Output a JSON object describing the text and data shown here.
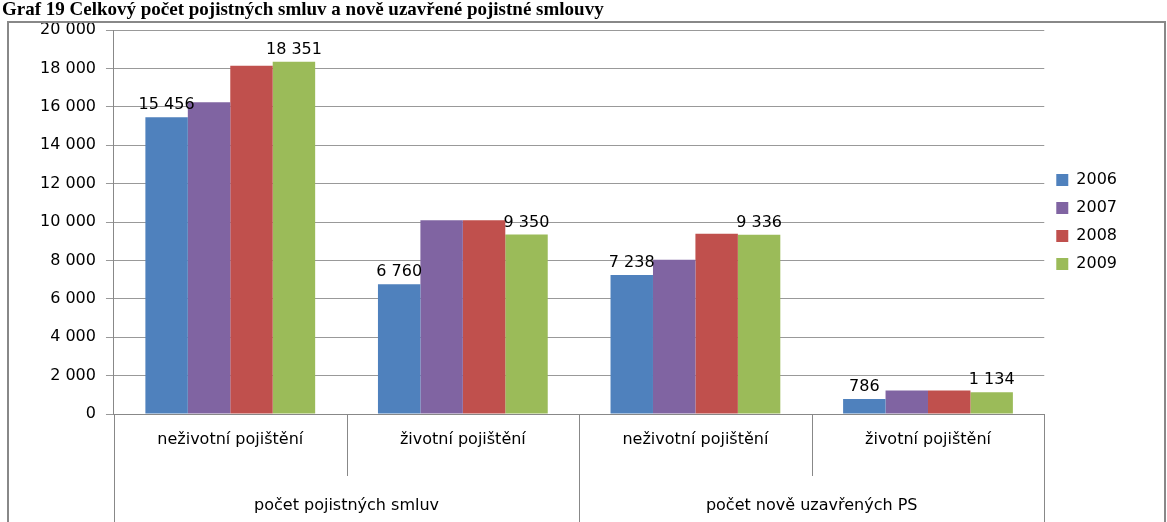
{
  "chart_data": {
    "type": "bar",
    "title": "Graf 19 Celkový počet pojistných smluv a nově uzavřené pojistné smlouvy",
    "categories": [
      "neživotní pojištění",
      "životní pojištění",
      "neživotní pojištění",
      "životní pojištění"
    ],
    "annotations": [
      "počet pojistných smluv",
      "počet nově uzavřených PS"
    ],
    "series": [
      {
        "name": "2006",
        "color": "#4f81bd",
        "values": [
          15456,
          6760,
          7238,
          786
        ],
        "value_labels": [
          "15 456",
          "6 760",
          "7 238",
          "786"
        ]
      },
      {
        "name": "2007",
        "color": "#8064a2",
        "values": [
          16240,
          10090,
          8040,
          1220
        ],
        "value_labels": [
          null,
          null,
          null,
          null
        ]
      },
      {
        "name": "2008",
        "color": "#c0504d",
        "values": [
          18140,
          10090,
          9390,
          1220
        ],
        "value_labels": [
          null,
          null,
          null,
          null
        ]
      },
      {
        "name": "2009",
        "color": "#9bbb59",
        "values": [
          18351,
          9350,
          9336,
          1134
        ],
        "value_labels": [
          "18 351",
          "9 350",
          "9 336",
          "1 134"
        ]
      }
    ],
    "ylim": [
      0,
      20000
    ],
    "yticks": [
      {
        "value": 0,
        "label": "0"
      },
      {
        "value": 2000,
        "label": "2 000"
      },
      {
        "value": 4000,
        "label": "4 000"
      },
      {
        "value": 6000,
        "label": "6 000"
      },
      {
        "value": 8000,
        "label": "8 000"
      },
      {
        "value": 10000,
        "label": "10 000"
      },
      {
        "value": 12000,
        "label": "12 000"
      },
      {
        "value": 14000,
        "label": "14 000"
      },
      {
        "value": 16000,
        "label": "16 000"
      },
      {
        "value": 18000,
        "label": "18 000"
      },
      {
        "value": 20000,
        "label": "20 000"
      }
    ],
    "grid": "y",
    "legend": "right"
  }
}
